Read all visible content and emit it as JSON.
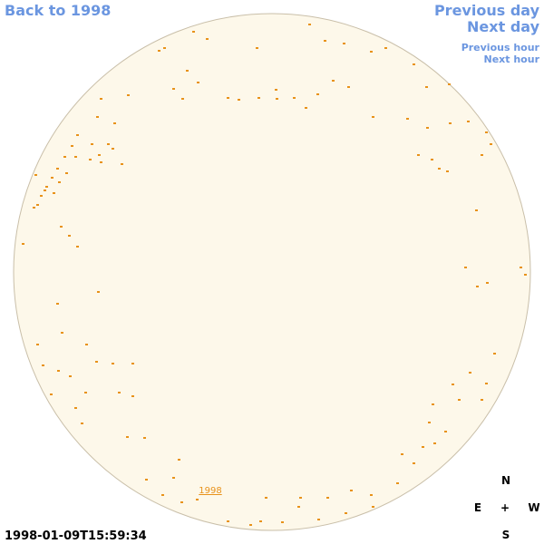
{
  "nav": {
    "back": "Back to 1998",
    "previous_day": "Previous day",
    "next_day": "Next day",
    "previous_hour": "Previous hour",
    "next_hour": "Next hour"
  },
  "disk_label": "1998",
  "compass": {
    "north": "N",
    "east": "E",
    "center": "+",
    "west": "W",
    "south": "S"
  },
  "timestamp": "1998-01-09T15:59:34"
}
